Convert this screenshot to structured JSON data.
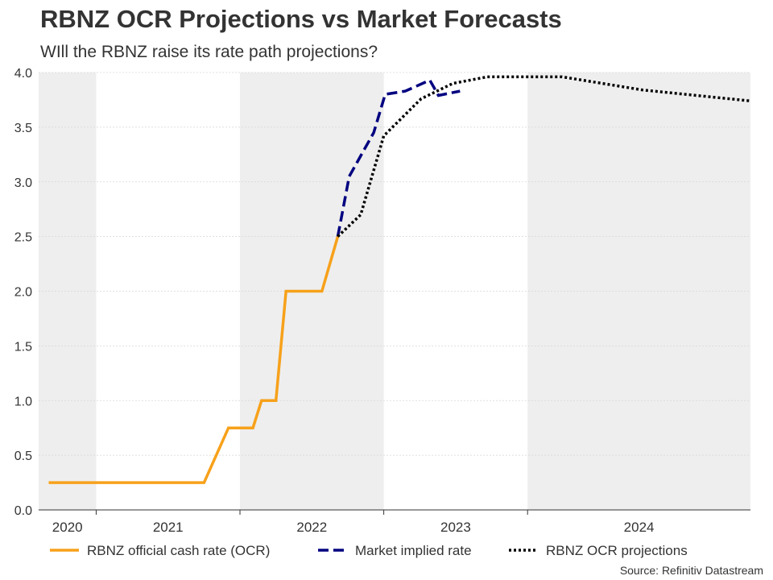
{
  "title": "RBNZ OCR Projections vs Market Forecasts",
  "subtitle": "WIll the RBNZ raise its rate path projections?",
  "source": "Source: Refinitiv Datastream",
  "chart_data": {
    "type": "line",
    "title": "RBNZ OCR Projections vs Market Forecasts",
    "subtitle": "WIll the RBNZ raise its rate path projections?",
    "xlabel": "",
    "ylabel": "",
    "xlim": [
      2020.0,
      2024.95
    ],
    "ylim": [
      0,
      4
    ],
    "yticks": [
      0,
      0.5,
      1,
      1.5,
      2,
      2.5,
      3,
      3.5,
      4
    ],
    "ytick_labels": [
      "0.0",
      "0.5",
      "1.0",
      "1.5",
      "2.0",
      "2.5",
      "3.0",
      "3.5",
      "4.0"
    ],
    "xtick_years": [
      {
        "label": "2020",
        "start": 2020.0,
        "end": 2020.4
      },
      {
        "label": "2021",
        "start": 2020.4,
        "end": 2021.4
      },
      {
        "label": "2022",
        "start": 2021.4,
        "end": 2022.4
      },
      {
        "label": "2023",
        "start": 2022.4,
        "end": 2023.4
      },
      {
        "label": "2024",
        "start": 2023.4,
        "end": 2024.95
      }
    ],
    "year_separators": [
      2020.4,
      2021.4,
      2022.4,
      2023.4
    ],
    "shaded_bands": [
      [
        2020.0,
        2020.4
      ],
      [
        2021.4,
        2022.4
      ],
      [
        2023.4,
        2024.95
      ]
    ],
    "grid": true,
    "legend_position": "bottom",
    "series": [
      {
        "name": "RBNZ official cash rate (OCR)",
        "color": "#F7A11A",
        "style": "solid",
        "x": [
          2020.07,
          2021.15,
          2021.32,
          2021.49,
          2021.55,
          2021.65,
          2021.72,
          2021.82,
          2021.97,
          2022.08
        ],
        "y": [
          0.25,
          0.25,
          0.75,
          0.75,
          1.0,
          1.0,
          2.0,
          2.0,
          2.0,
          2.5
        ]
      },
      {
        "name": "Market implied rate",
        "color": "#000080",
        "style": "dashed",
        "x": [
          2022.08,
          2022.16,
          2022.33,
          2022.41,
          2022.55,
          2022.72,
          2022.78,
          2022.93
        ],
        "y": [
          2.5,
          3.05,
          3.45,
          3.8,
          3.83,
          3.93,
          3.79,
          3.83
        ]
      },
      {
        "name": "RBNZ OCR projections",
        "color": "#000000",
        "style": "dotted",
        "x": [
          2022.08,
          2022.24,
          2022.4,
          2022.66,
          2022.88,
          2023.12,
          2023.64,
          2024.2,
          2024.95
        ],
        "y": [
          2.5,
          2.7,
          3.42,
          3.76,
          3.9,
          3.96,
          3.96,
          3.84,
          3.74
        ]
      }
    ]
  }
}
